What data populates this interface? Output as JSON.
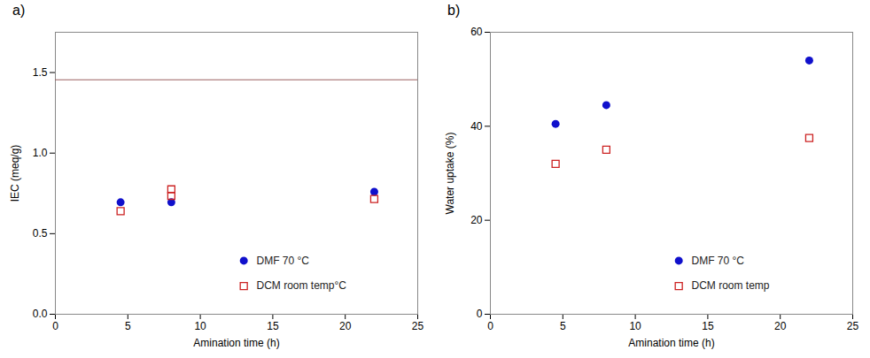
{
  "chart_data": [
    {
      "type": "scatter",
      "title": "a)",
      "x_label": "Amination time (h)",
      "y_label": "IEC (meq/g)",
      "xlim": [
        0,
        25
      ],
      "ylim": [
        0,
        1.75
      ],
      "xticks": [
        0,
        5,
        10,
        15,
        20,
        25
      ],
      "yticks": [
        {
          "value": 0,
          "label": "0.0"
        },
        0.5,
        {
          "value": 1,
          "label": "1.0"
        },
        1.5
      ],
      "hlines": [
        {
          "value": 1.455,
          "color": "#9B6060"
        }
      ],
      "legend": "lower right",
      "series": [
        {
          "name": "DMF 70 °C",
          "color": "#1010CC",
          "marker": "circle",
          "x": [
            4.5,
            8,
            22
          ],
          "values": [
            0.695,
            0.695,
            0.76
          ]
        },
        {
          "name": "DCM room temp°C",
          "color": "#CC2222",
          "marker": "square_open",
          "x": [
            4.5,
            8,
            8,
            22
          ],
          "values": [
            0.64,
            0.775,
            0.735,
            0.715
          ]
        }
      ]
    },
    {
      "type": "scatter",
      "title": "b)",
      "x_label": "Amination time (h)",
      "y_label": "Water uptake (%)",
      "xlim": [
        0,
        25
      ],
      "ylim": [
        0,
        60
      ],
      "xticks": [
        0,
        5,
        10,
        15,
        20,
        25
      ],
      "yticks": [
        0,
        20,
        40,
        60
      ],
      "legend": "lower right",
      "series": [
        {
          "name": "DMF 70 °C",
          "color": "#1010CC",
          "marker": "circle",
          "x": [
            4.5,
            8,
            22
          ],
          "values": [
            40.5,
            44.5,
            54.0
          ]
        },
        {
          "name": "DCM room temp",
          "color": "#CC2222",
          "marker": "square_open",
          "x": [
            4.5,
            8,
            22
          ],
          "values": [
            32.0,
            35.0,
            37.5
          ]
        }
      ]
    }
  ]
}
